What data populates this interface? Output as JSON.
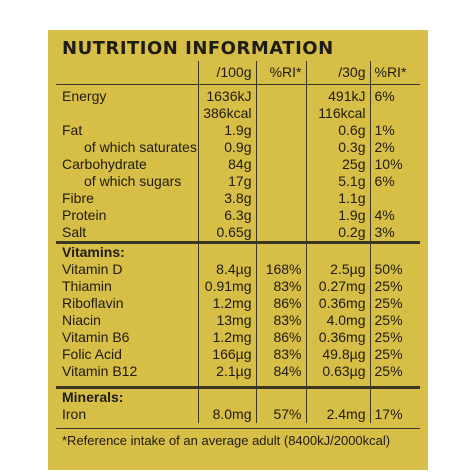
{
  "title": "NUTRITION INFORMATION",
  "columns": [
    "",
    "/100g",
    "%RI*",
    "/30g",
    "%RI*"
  ],
  "rows": [
    {
      "label": "Energy",
      "per100": "1636kJ",
      "ri100": "",
      "per30": "491kJ",
      "ri30": "6%"
    },
    {
      "label": "",
      "per100": "386kcal",
      "ri100": "",
      "per30": "116kcal",
      "ri30": ""
    },
    {
      "label": "Fat",
      "per100": "1.9g",
      "ri100": "",
      "per30": "0.6g",
      "ri30": "1%"
    },
    {
      "label": "of which saturates",
      "per100": "0.9g",
      "ri100": "",
      "per30": "0.3g",
      "ri30": "2%"
    },
    {
      "label": "Carbohydrate",
      "per100": "84g",
      "ri100": "",
      "per30": "25g",
      "ri30": "10%"
    },
    {
      "label": "of which sugars",
      "per100": "17g",
      "ri100": "",
      "per30": "5.1g",
      "ri30": "6%"
    },
    {
      "label": "Fibre",
      "per100": "3.8g",
      "ri100": "",
      "per30": "1.1g",
      "ri30": ""
    },
    {
      "label": "Protein",
      "per100": "6.3g",
      "ri100": "",
      "per30": "1.9g",
      "ri30": "4%"
    },
    {
      "label": "Salt",
      "per100": "0.65g",
      "ri100": "",
      "per30": "0.2g",
      "ri30": "3%"
    }
  ],
  "vitamins_heading": "Vitamins:",
  "vitamins": [
    {
      "label": "Vitamin D",
      "per100": "8.4µg",
      "ri100": "168%",
      "per30": "2.5µg",
      "ri30": "50%"
    },
    {
      "label": "Thiamin",
      "per100": "0.91mg",
      "ri100": "83%",
      "per30": "0.27mg",
      "ri30": "25%"
    },
    {
      "label": "Riboflavin",
      "per100": "1.2mg",
      "ri100": "86%",
      "per30": "0.36mg",
      "ri30": "25%"
    },
    {
      "label": "Niacin",
      "per100": "13mg",
      "ri100": "83%",
      "per30": "4.0mg",
      "ri30": "25%"
    },
    {
      "label": "Vitamin B6",
      "per100": "1.2mg",
      "ri100": "86%",
      "per30": "0.36mg",
      "ri30": "25%"
    },
    {
      "label": "Folic Acid",
      "per100": "166µg",
      "ri100": "83%",
      "per30": "49.8µg",
      "ri30": "25%"
    },
    {
      "label": "Vitamin B12",
      "per100": "2.1µg",
      "ri100": "84%",
      "per30": "0.63µg",
      "ri30": "25%"
    }
  ],
  "minerals_heading": "Minerals:",
  "minerals": [
    {
      "label": "Iron",
      "per100": "8.0mg",
      "ri100": "57%",
      "per30": "2.4mg",
      "ri30": "17%"
    }
  ],
  "footnote": "*Reference intake of an average adult (8400kJ/2000kcal)",
  "colors": {
    "panel": "#d7be47",
    "text": "#1e1c14",
    "rules": "#3a3624"
  }
}
